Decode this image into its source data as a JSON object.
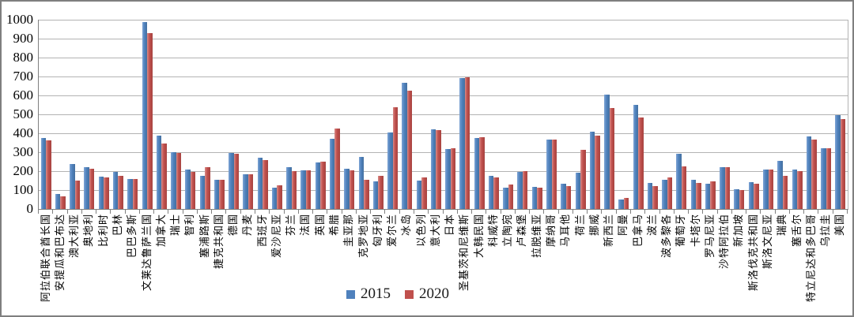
{
  "chart_data": {
    "type": "bar",
    "title": "",
    "xlabel": "",
    "ylabel": "",
    "ylim": [
      0,
      1000
    ],
    "ytick_step": 100,
    "yticks": [
      0,
      100,
      200,
      300,
      400,
      500,
      600,
      700,
      800,
      900,
      1000
    ],
    "grid": true,
    "legend_position": "bottom-center",
    "categories": [
      "阿拉伯联合酋长国",
      "安提瓜和巴布达",
      "澳大利亚",
      "奥地利",
      "比利时",
      "巴林",
      "巴巴多斯",
      "文莱达鲁萨兰国",
      "加拿大",
      "瑞士",
      "智利",
      "塞浦路斯",
      "捷克共和国",
      "德国",
      "丹麦",
      "西班牙",
      "爱沙尼亚",
      "芬兰",
      "法国",
      "英国",
      "希腊",
      "圭亚那",
      "克罗地亚",
      "匈牙利",
      "爱尔兰",
      "冰岛",
      "以色列",
      "意大利",
      "日本",
      "圣基茨和尼维斯",
      "大韩民国",
      "科威特",
      "立陶宛",
      "卢森堡",
      "拉脱维亚",
      "摩纳哥",
      "马耳他",
      "荷兰",
      "挪威",
      "新西兰",
      "阿曼",
      "巴拿马",
      "波兰",
      "波多黎各",
      "葡萄牙",
      "卡塔尔",
      "罗马尼亚",
      "沙特阿拉伯",
      "新加坡",
      "斯洛伐克共和国",
      "斯洛文尼亚",
      "瑞典",
      "塞舌尔",
      "特立尼达和多巴哥",
      "乌拉圭",
      "美国"
    ],
    "series": [
      {
        "name": "2015",
        "color": "#4f81bd",
        "values": [
          373,
          78,
          238,
          219,
          171,
          196,
          159,
          988,
          386,
          298,
          210,
          173,
          155,
          297,
          184,
          272,
          113,
          219,
          206,
          244,
          372,
          213,
          275,
          146,
          406,
          665,
          150,
          420,
          315,
          690,
          377,
          175,
          112,
          195,
          116,
          365,
          135,
          190,
          410,
          605,
          52,
          548,
          136,
          156,
          293,
          154,
          133,
          219,
          103,
          142,
          207,
          255,
          209,
          383,
          321,
          495
        ]
      },
      {
        "name": "2020",
        "color": "#c0504d",
        "values": [
          364,
          68,
          148,
          214,
          166,
          176,
          157,
          930,
          347,
          294,
          196,
          220,
          155,
          293,
          184,
          258,
          123,
          202,
          206,
          250,
          424,
          203,
          153,
          175,
          537,
          625,
          165,
          415,
          320,
          695,
          378,
          165,
          130,
          202,
          114,
          365,
          119,
          311,
          387,
          535,
          60,
          484,
          121,
          167,
          223,
          136,
          146,
          219,
          100,
          135,
          210,
          175,
          200,
          367,
          321,
          477
        ]
      }
    ]
  },
  "colors": {
    "background": "#ffffff",
    "frame_border": "#7f7f7f",
    "gridline": "#b3b3b3",
    "axis": "#808080",
    "series_2015": "#4f81bd",
    "series_2020": "#c0504d"
  },
  "legend": {
    "items": [
      {
        "label": "2015"
      },
      {
        "label": "2020"
      }
    ]
  }
}
